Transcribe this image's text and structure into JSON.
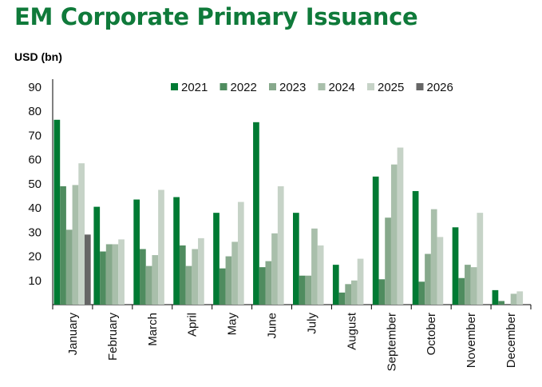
{
  "chart_data": {
    "type": "bar",
    "title": "EM Corporate Primary Issuance",
    "ylabel": "USD (bn)",
    "xlabel": "",
    "ylim": [
      0,
      90
    ],
    "yticks": [
      10,
      20,
      30,
      40,
      50,
      60,
      70,
      80,
      90
    ],
    "grid": false,
    "legend": "top",
    "categories": [
      "January",
      "February",
      "March",
      "April",
      "May",
      "June",
      "July",
      "August",
      "September",
      "October",
      "November",
      "December"
    ],
    "series": [
      {
        "name": "2021",
        "color": "#007a33",
        "values": [
          76.5,
          40.5,
          43.5,
          44.5,
          38,
          75.5,
          38,
          16.5,
          53,
          47,
          32,
          6
        ]
      },
      {
        "name": "2022",
        "color": "#4f8c5f",
        "values": [
          49,
          22,
          23,
          24.5,
          15,
          15.5,
          12,
          5,
          10.5,
          9.5,
          11,
          1.5
        ]
      },
      {
        "name": "2023",
        "color": "#87a98c",
        "values": [
          31,
          25,
          16,
          16,
          20,
          18,
          12,
          8.5,
          36,
          21,
          16.5,
          0
        ]
      },
      {
        "name": "2024",
        "color": "#a9bfab",
        "values": [
          49.5,
          25,
          20.5,
          23,
          26,
          29.5,
          31.5,
          10,
          58,
          39.5,
          15.5,
          4.5
        ]
      },
      {
        "name": "2025",
        "color": "#c6d3c7",
        "values": [
          58.5,
          27,
          47.5,
          27.5,
          42.5,
          49,
          24.5,
          19,
          65,
          28,
          38,
          5.5
        ]
      },
      {
        "name": "2026",
        "color": "#666666",
        "values": [
          29,
          null,
          null,
          null,
          null,
          null,
          null,
          null,
          null,
          null,
          null,
          null
        ]
      }
    ]
  }
}
